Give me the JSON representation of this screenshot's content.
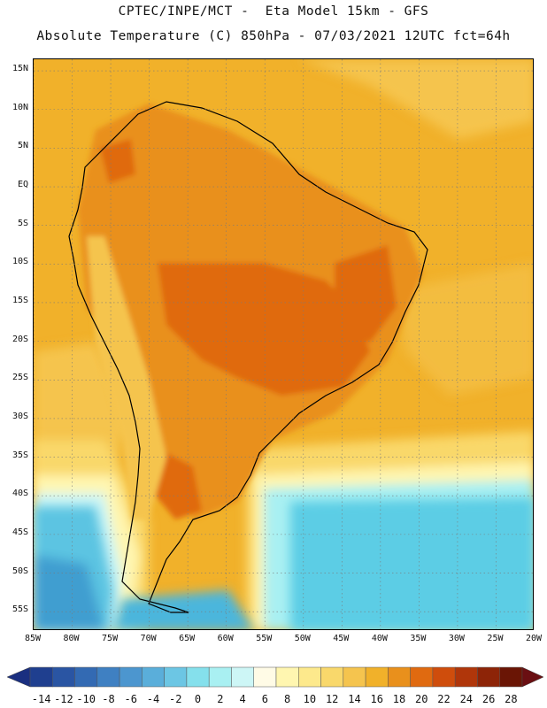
{
  "header": {
    "line1": "CPTEC/INPE/MCT -  Eta Model 15km - GFS",
    "line2": "Absolute Temperature (C) 850hPa - 07/03/2021 12UTC fct=64h"
  },
  "axes": {
    "lat_labels": [
      "15N",
      "10N",
      "5N",
      "EQ",
      "5S",
      "10S",
      "15S",
      "20S",
      "25S",
      "30S",
      "35S",
      "40S",
      "45S",
      "50S",
      "55S"
    ],
    "lon_labels": [
      "85W",
      "80W",
      "75W",
      "70W",
      "65W",
      "60W",
      "55W",
      "50W",
      "45W",
      "40W",
      "35W",
      "30W",
      "25W",
      "20W"
    ]
  },
  "colorbar": {
    "labels": [
      "-14",
      "-12",
      "-10",
      "-8",
      "-6",
      "-4",
      "-2",
      "0",
      "2",
      "4",
      "6",
      "8",
      "10",
      "12",
      "14",
      "16",
      "18",
      "20",
      "22",
      "24",
      "26",
      "28"
    ],
    "colors": [
      "#1f3f8f",
      "#2a55a3",
      "#336ab3",
      "#3f80c2",
      "#4c96cf",
      "#5aaeda",
      "#6cc6e4",
      "#85e0ec",
      "#a9f0f2",
      "#cdf6f6",
      "#fffbe6",
      "#fff6b0",
      "#fde98c",
      "#f9d86b",
      "#f5c44e",
      "#f1b12a",
      "#e9901c",
      "#e06a10",
      "#cf4d0c",
      "#b0360a",
      "#8d2407",
      "#6a1505"
    ],
    "under_color": "#1a2f80",
    "over_color": "#6a0f12"
  },
  "map": {
    "region": "South America",
    "lon_range": [
      -85,
      -20
    ],
    "lat_range": [
      -57.5,
      16.5
    ],
    "grid": true,
    "colors": {
      "ocean_warm": "#f1b12a",
      "ocean_mid": "#f5c44e",
      "interior_hot": "#e06a10",
      "interior_warm": "#e9901c",
      "andes_cool": "#f5c44e",
      "south_cold": "#4cc8e0",
      "south_colder": "#3ba0d0",
      "coast_line": "#000000"
    }
  }
}
